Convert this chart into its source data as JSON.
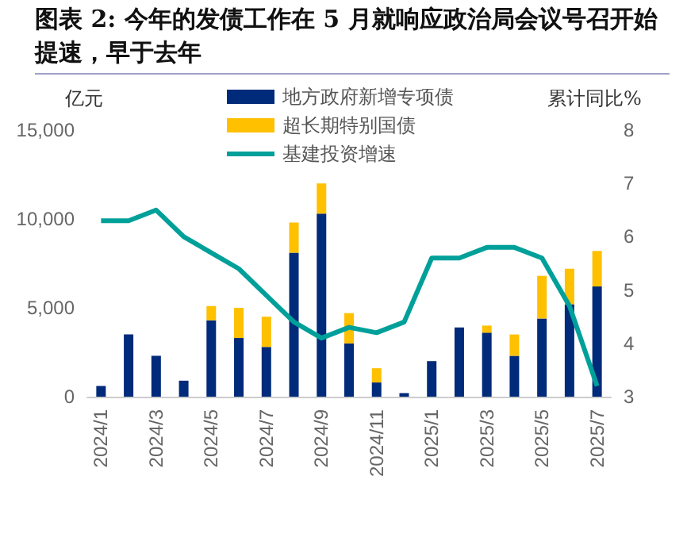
{
  "chart_data": {
    "type": "bar",
    "title": "图表 2: 今年的发债工作在 5 月就响应政治局会议号召开始提速，早于去年",
    "ylabel": "亿元",
    "y2label": "累计同比%",
    "categories": [
      "2024/1",
      null,
      "2024/3",
      null,
      "2024/5",
      null,
      "2024/7",
      null,
      "2024/9",
      null,
      "2024/11",
      null,
      "2025/1",
      null,
      "2025/3",
      null,
      "2025/5",
      null,
      "2025/7"
    ],
    "stacked": true,
    "series": [
      {
        "name": "地方政府新增专项债",
        "color": "#002a7a",
        "values": [
          600,
          3500,
          2300,
          900,
          4300,
          3300,
          2800,
          8100,
          10300,
          3000,
          800,
          200,
          2000,
          3900,
          3600,
          2300,
          4400,
          5200,
          6200
        ]
      },
      {
        "name": "超长期特别国债",
        "color": "#ffc000",
        "values": [
          null,
          null,
          null,
          null,
          800,
          1700,
          1700,
          1700,
          1700,
          1700,
          800,
          null,
          null,
          null,
          400,
          1200,
          2400,
          2000,
          2000
        ]
      },
      {
        "name": "基建投资增速",
        "type": "line",
        "axis": "y2",
        "color": "#00a09a",
        "marker": "none",
        "values": [
          6.3,
          6.3,
          6.5,
          6.0,
          5.7,
          5.4,
          4.9,
          4.4,
          4.1,
          4.3,
          4.2,
          4.4,
          5.6,
          5.6,
          5.8,
          5.8,
          5.6,
          4.7,
          3.2
        ]
      }
    ],
    "ylim": [
      0,
      15000
    ],
    "yticks": [
      0,
      {
        "value": 5000,
        "label": "5,000"
      },
      {
        "value": 10000,
        "label": "10,000"
      },
      {
        "value": 15000,
        "label": "15,000"
      }
    ],
    "y2lim": [
      3,
      8
    ],
    "y2ticks": [
      3,
      4,
      5,
      6,
      7,
      8
    ],
    "grid": false,
    "legend": "top"
  }
}
